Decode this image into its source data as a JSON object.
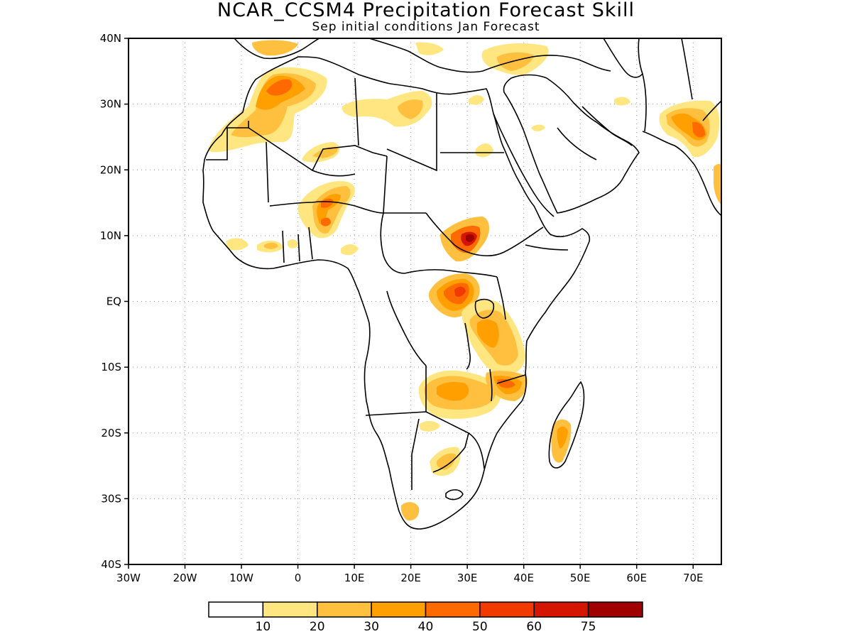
{
  "title": "NCAR_CCSM4 Precipitation Forecast Skill",
  "subtitle": "Sep initial conditions  Jan Forecast",
  "map": {
    "region": "Africa",
    "lon_range": [
      -30,
      75
    ],
    "lat_range": [
      -40,
      40
    ],
    "grid": "dotted",
    "x_ticks": [
      "30W",
      "20W",
      "10W",
      "0",
      "10E",
      "20E",
      "30E",
      "40E",
      "50E",
      "60E",
      "70E"
    ],
    "y_ticks": [
      "40N",
      "30N",
      "20N",
      "10N",
      "EQ",
      "10S",
      "20S",
      "30S",
      "40S"
    ]
  },
  "colorbar": {
    "labels": [
      "10",
      "20",
      "30",
      "40",
      "50",
      "60",
      "75"
    ],
    "colors": [
      "#ffffff",
      "#ffe680",
      "#ffc040",
      "#ff9f00",
      "#ff6a00",
      "#f03a00",
      "#d41500",
      "#a00000"
    ]
  }
}
